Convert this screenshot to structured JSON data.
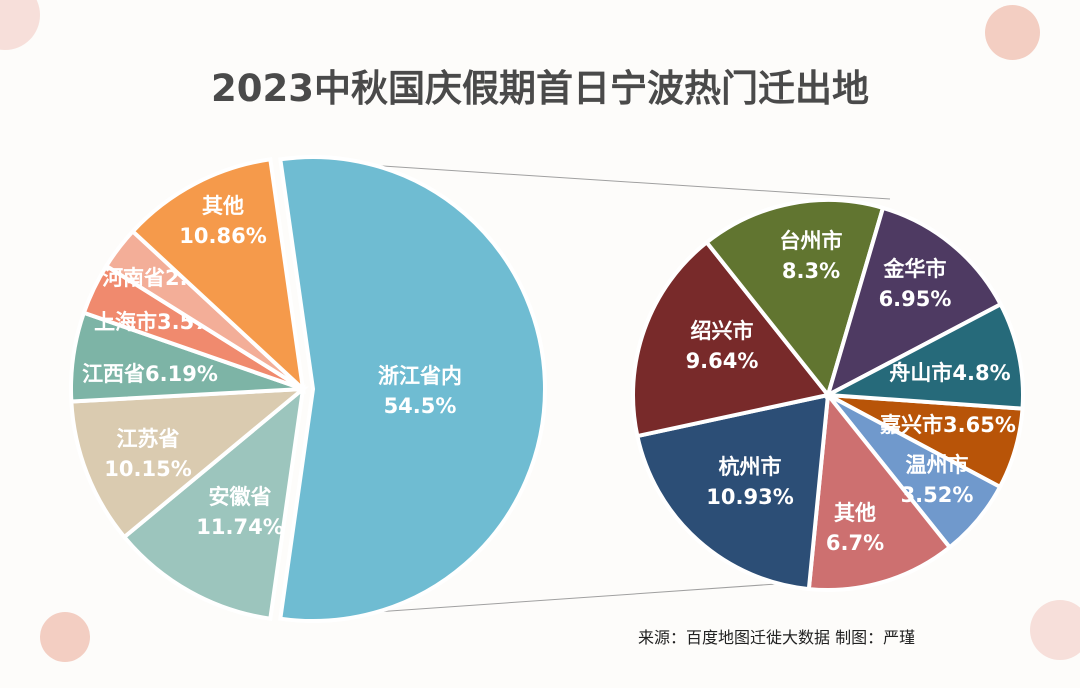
{
  "chart_data": {
    "type": "pie-of-pie",
    "title": "2023中秋国庆假期首日宁波热门迁出地",
    "source": "来源：百度地图迁徙大数据   制图：严瑾",
    "main": {
      "slices": [
        {
          "label": "浙江省内",
          "value": 54.5,
          "display": "54.5%",
          "color": "#6fbcd2"
        },
        {
          "label": "安徽省",
          "value": 11.74,
          "display": "11.74%",
          "color": "#9cc5bd"
        },
        {
          "label": "江苏省",
          "value": 10.15,
          "display": "10.15%",
          "color": "#dacbb0"
        },
        {
          "label": "江西省",
          "value": 6.19,
          "display": "6.19%",
          "color": "#7db4a6"
        },
        {
          "label": "上海市",
          "value": 3.57,
          "display": "3.57%",
          "color": "#f08a6e"
        },
        {
          "label": "河南省",
          "value": 2.99,
          "display": "2.99%",
          "color": "#f3ae98"
        },
        {
          "label": "其他",
          "value": 10.86,
          "display": "10.86%",
          "color": "#f59a4b"
        }
      ]
    },
    "secondary": {
      "slices": [
        {
          "label": "嘉兴市",
          "value": 3.65,
          "display": "3.65%",
          "color": "#b85408"
        },
        {
          "label": "温州市",
          "value": 3.52,
          "display": "3.52%",
          "color": "#7099cc"
        },
        {
          "label": "其他",
          "value": 6.7,
          "display": "6.7%",
          "color": "#cd7070"
        },
        {
          "label": "杭州市",
          "value": 10.93,
          "display": "10.93%",
          "color": "#2c4e76"
        },
        {
          "label": "绍兴市",
          "value": 9.64,
          "display": "9.64%",
          "color": "#782a2a"
        },
        {
          "label": "台州市",
          "value": 8.3,
          "display": "8.3%",
          "color": "#617530"
        },
        {
          "label": "金华市",
          "value": 6.95,
          "display": "6.95%",
          "color": "#4e3a62"
        },
        {
          "label": "舟山市",
          "value": 4.8,
          "display": "4.8%",
          "color": "#266a7a"
        }
      ]
    }
  }
}
